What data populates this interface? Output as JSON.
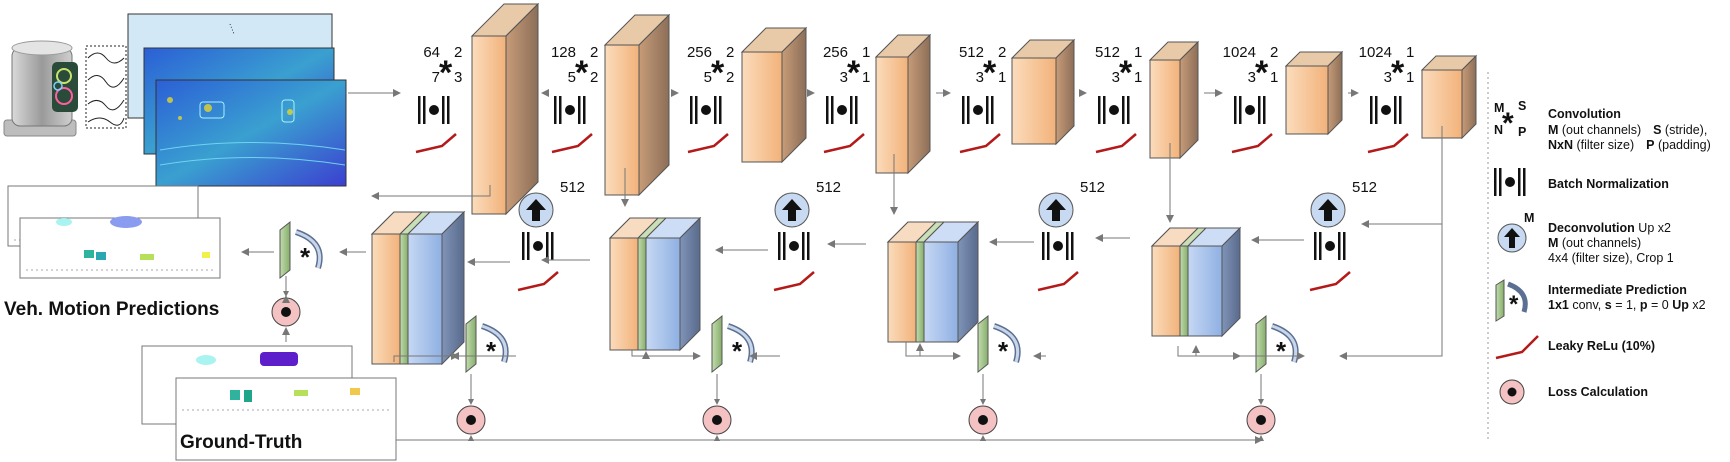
{
  "encoder": [
    {
      "m": "64",
      "s": "2",
      "n": "7",
      "p": "3"
    },
    {
      "m": "128",
      "s": "2",
      "n": "5",
      "p": "2"
    },
    {
      "m": "256",
      "s": "2",
      "n": "5",
      "p": "2"
    },
    {
      "m": "256",
      "s": "1",
      "n": "3",
      "p": "1"
    },
    {
      "m": "512",
      "s": "2",
      "n": "3",
      "p": "1"
    },
    {
      "m": "512",
      "s": "1",
      "n": "3",
      "p": "1"
    },
    {
      "m": "1024",
      "s": "2",
      "n": "3",
      "p": "1"
    },
    {
      "m": "1024",
      "s": "1",
      "n": "3",
      "p": "1"
    }
  ],
  "decoder": [
    {
      "m": "512"
    },
    {
      "m": "512"
    },
    {
      "m": "512"
    },
    {
      "m": "512"
    }
  ],
  "captions": {
    "predictions": "Veh. Motion Predictions",
    "ground_truth": "Ground-Truth"
  },
  "legend": {
    "conv": {
      "m": "M",
      "s": "S",
      "n": "N",
      "p": "P"
    },
    "conv_title": "Convolution",
    "conv_line1_a": "M",
    "conv_line1_b": " (out channels)",
    "conv_line1_c": "S",
    "conv_line1_d": " (stride),",
    "conv_line2_a": "NxN",
    "conv_line2_b": " (filter size)",
    "conv_line2_c": "P",
    "conv_line2_d": " (padding)",
    "bn_title": "Batch Normalization",
    "deconv_m": "M",
    "deconv_title": "Deconvolution",
    "deconv_title2": " Up x2",
    "deconv_line1_a": "M",
    "deconv_line1_b": " (out channels)",
    "deconv_line2": "4x4 (filter size), Crop 1",
    "ip_title": "Intermediate Prediction",
    "ip_line_a": "1x1",
    "ip_line_b": " conv, ",
    "ip_line_c": "s",
    "ip_line_d": " = 1, ",
    "ip_line_e": "p",
    "ip_line_f": " = 0 ",
    "ip_line_g": "Up",
    "ip_line_h": " x2",
    "relu_title": "Leaky ReLu (10%)",
    "loss_title": "Loss Calculation"
  },
  "colors": {
    "orange_front": "#f6c89c",
    "orange_dark": "#9d7d62",
    "green": "#a7c98c",
    "blue": "#a9c4ec",
    "relu": "#b41a1a",
    "loss": "#f4c2c2",
    "deconv": "#c8daf2",
    "arrow": "#777777"
  }
}
